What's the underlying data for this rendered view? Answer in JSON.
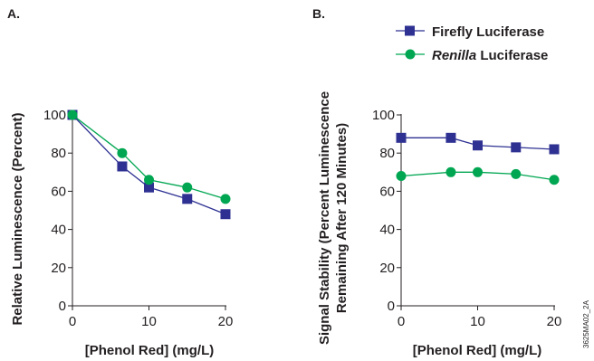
{
  "figure_id": "3625MA02_2A",
  "colors": {
    "firefly": "#2e3192",
    "renilla": "#00a651",
    "axis": "#231f20"
  },
  "legend": {
    "firefly": {
      "label": "Firefly Luciferase"
    },
    "renilla": {
      "label_italic": "Renilla",
      "label_rest": " Luciferase"
    }
  },
  "chart_data": [
    {
      "panel": "A.",
      "type": "line",
      "xlabel": "[Phenol Red] (mg/L)",
      "ylabel": "Relative Luminescence (Percent)",
      "xlim": [
        0,
        20
      ],
      "ylim": [
        0,
        100
      ],
      "xticks": [
        0,
        10,
        20
      ],
      "yticks": [
        0,
        20,
        40,
        60,
        80,
        100
      ],
      "grid": false,
      "series": [
        {
          "key": "firefly",
          "marker": "square",
          "x": [
            0,
            6.5,
            10,
            15,
            20
          ],
          "y": [
            100,
            73,
            62,
            56,
            48
          ]
        },
        {
          "key": "renilla",
          "marker": "circle",
          "x": [
            0,
            6.5,
            10,
            15,
            20
          ],
          "y": [
            100,
            80,
            66,
            62,
            56
          ]
        }
      ]
    },
    {
      "panel": "B.",
      "type": "line",
      "xlabel": "[Phenol Red] (mg/L)",
      "ylabel_line1": "Signal Stability (Percent Luminescence",
      "ylabel_line2": "Remaining After 120 Minutes)",
      "xlim": [
        0,
        20
      ],
      "ylim": [
        0,
        100
      ],
      "xticks": [
        0,
        10,
        20
      ],
      "yticks": [
        0,
        20,
        40,
        60,
        80,
        100
      ],
      "grid": false,
      "legend_position": "top-right",
      "series": [
        {
          "key": "firefly",
          "marker": "square",
          "x": [
            0,
            6.5,
            10,
            15,
            20
          ],
          "y": [
            88,
            88,
            84,
            83,
            82
          ]
        },
        {
          "key": "renilla",
          "marker": "circle",
          "x": [
            0,
            6.5,
            10,
            15,
            20
          ],
          "y": [
            68,
            70,
            70,
            69,
            66
          ]
        }
      ]
    }
  ]
}
